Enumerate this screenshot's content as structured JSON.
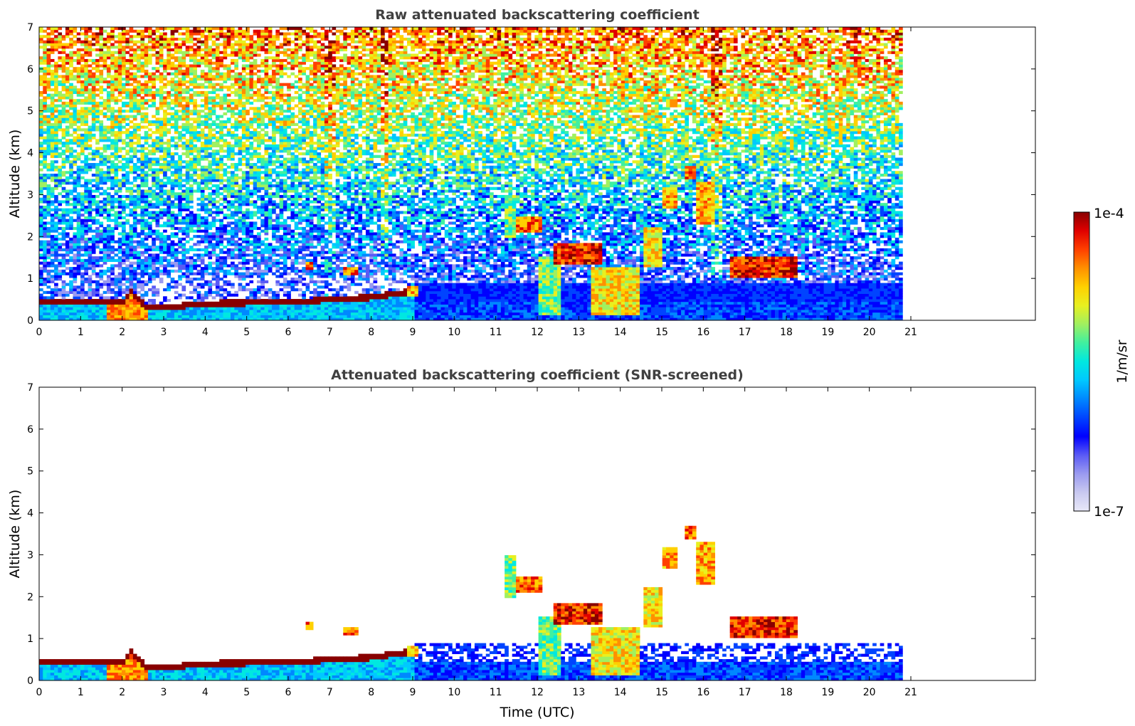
{
  "chart_data": [
    {
      "type": "heatmap",
      "title": "Raw attenuated backscattering coefficient",
      "xlabel": "",
      "ylabel": "Altitude (km)",
      "xlim": [
        0,
        24
      ],
      "ylim": [
        0,
        7
      ],
      "xticks": [
        0,
        1,
        2,
        3,
        4,
        5,
        6,
        7,
        8,
        9,
        10,
        11,
        12,
        13,
        14,
        15,
        16,
        17,
        18,
        19,
        20,
        21
      ],
      "yticks": [
        0,
        1,
        2,
        3,
        4,
        5,
        6,
        7
      ],
      "data_end_time": 20.8,
      "screened": false,
      "features": [
        {
          "kind": "boundary_layer_top",
          "points": [
            [
              0,
              0.45
            ],
            [
              1,
              0.45
            ],
            [
              2,
              0.42
            ],
            [
              3,
              0.3
            ],
            [
              4,
              0.4
            ],
            [
              5,
              0.42
            ],
            [
              6,
              0.42
            ],
            [
              7,
              0.5
            ],
            [
              8,
              0.55
            ],
            [
              9,
              0.7
            ]
          ]
        },
        {
          "kind": "cloud",
          "t": [
            11.5,
            12.1
          ],
          "alt": [
            2.1,
            2.4
          ]
        },
        {
          "kind": "cloud",
          "t": [
            12.4,
            13.6
          ],
          "alt": [
            1.4,
            1.8
          ]
        },
        {
          "kind": "cloud",
          "t": [
            13.2,
            14.5
          ],
          "alt": [
            0.1,
            1.3
          ]
        },
        {
          "kind": "cloud",
          "t": [
            14.6,
            15.0
          ],
          "alt": [
            1.3,
            2.2
          ]
        },
        {
          "kind": "cloud",
          "t": [
            15.0,
            15.4
          ],
          "alt": [
            2.7,
            3.2
          ]
        },
        {
          "kind": "cloud",
          "t": [
            15.6,
            15.8
          ],
          "alt": [
            3.4,
            3.7
          ]
        },
        {
          "kind": "cloud",
          "t": [
            15.8,
            16.3
          ],
          "alt": [
            2.3,
            3.3
          ]
        },
        {
          "kind": "cloud",
          "t": [
            16.6,
            18.3
          ],
          "alt": [
            1.0,
            1.5
          ]
        }
      ]
    },
    {
      "type": "heatmap",
      "title": "Attenuated backscattering coefficient (SNR-screened)",
      "xlabel": "Time (UTC)",
      "ylabel": "Altitude (km)",
      "xlim": [
        0,
        24
      ],
      "ylim": [
        0,
        7
      ],
      "xticks": [
        0,
        1,
        2,
        3,
        4,
        5,
        6,
        7,
        8,
        9,
        10,
        11,
        12,
        13,
        14,
        15,
        16,
        17,
        18,
        19,
        20,
        21
      ],
      "yticks": [
        0,
        1,
        2,
        3,
        4,
        5,
        6,
        7
      ],
      "data_end_time": 20.8,
      "screened": true
    }
  ],
  "colorbar": {
    "label": "1/m/sr",
    "min_label": "1e-7",
    "max_label": "1e-4",
    "colors": [
      "#e8e8f8",
      "#c8c8f0",
      "#9a9af0",
      "#5a5af5",
      "#0000ff",
      "#0044ff",
      "#0088ff",
      "#00c8ff",
      "#00e8e0",
      "#40f0a0",
      "#a0f060",
      "#e8f020",
      "#ffd000",
      "#ff9000",
      "#ff4000",
      "#e00000",
      "#880000"
    ]
  }
}
